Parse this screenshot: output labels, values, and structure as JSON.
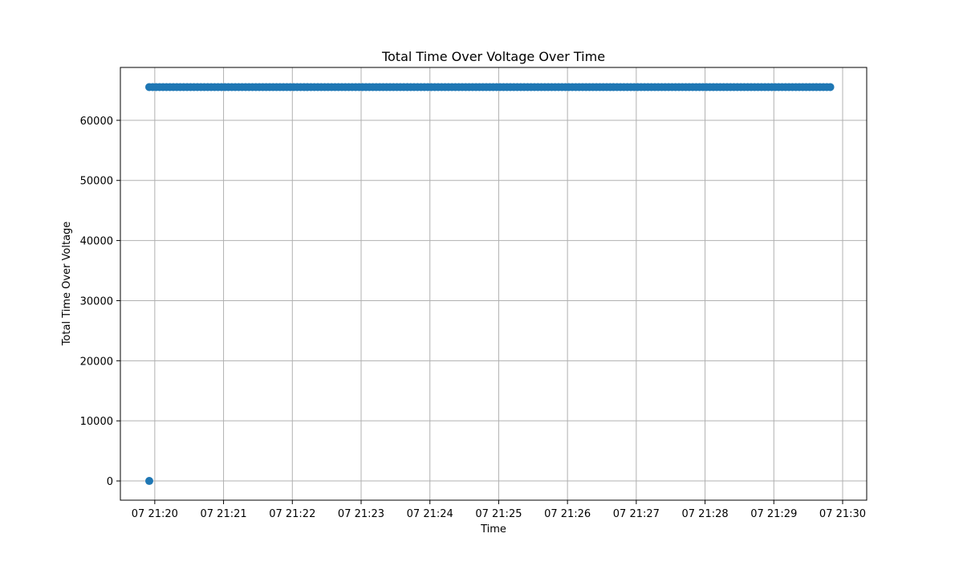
{
  "chart_data": {
    "type": "scatter",
    "title": "Total Time Over Voltage Over Time",
    "xlabel": "Time",
    "ylabel": "Total Time Over Voltage",
    "x_unit": "minutes after 21:00 on day 07",
    "xlim": [
      19.5,
      30.35
    ],
    "ylim": [
      -3200,
      68800
    ],
    "x_ticks": [
      20,
      21,
      22,
      23,
      24,
      25,
      26,
      27,
      28,
      29,
      30
    ],
    "x_tick_labels": [
      "07 21:20",
      "07 21:21",
      "07 21:22",
      "07 21:23",
      "07 21:24",
      "07 21:25",
      "07 21:26",
      "07 21:27",
      "07 21:28",
      "07 21:29",
      "07 21:30"
    ],
    "y_ticks": [
      0,
      10000,
      20000,
      30000,
      40000,
      50000,
      60000
    ],
    "y_tick_labels": [
      "0",
      "10000",
      "20000",
      "30000",
      "40000",
      "50000",
      "60000"
    ],
    "grid": true,
    "color": "#1f77b4",
    "series": [
      {
        "name": "Total Time Over Voltage",
        "points": [
          {
            "x": 19.92,
            "y": 0
          },
          {
            "x": 19.92,
            "y": 65535
          }
        ],
        "constant_run": {
          "x_start": 19.97,
          "x_end": 29.82,
          "step": 0.05,
          "y": 65535
        }
      }
    ]
  }
}
